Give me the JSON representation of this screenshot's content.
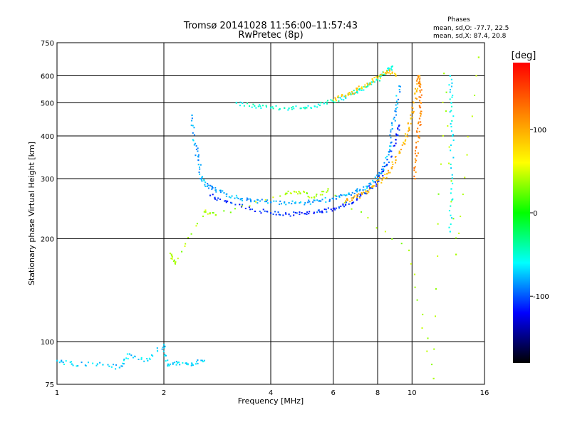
{
  "chart_data": {
    "type": "scatter",
    "title": "Tromsø 20141028 11:56:00–11:57:43",
    "subtitle": "RwPretec (8p)",
    "xlabel": "Frequency [MHz]",
    "ylabel": "Stationary phase Virtual Height [km]",
    "x_scale": "log",
    "y_scale": "log",
    "xlim": [
      1,
      16
    ],
    "ylim": [
      75,
      750
    ],
    "x_ticks": [
      1,
      2,
      4,
      6,
      8,
      10,
      16
    ],
    "y_ticks": [
      75,
      100,
      200,
      300,
      400,
      500,
      600,
      750
    ],
    "phase_box": {
      "title": "Phases",
      "line1": "mean, sd,O:  -77.7, 22.5",
      "line2": "mean, sd,X:  87.4, 20.8"
    },
    "colorbar": {
      "label": "[deg]",
      "range": [
        -180,
        180
      ],
      "ticks": [
        100,
        0,
        -100
      ],
      "colors": [
        "#ff0000",
        "#ff8000",
        "#ffff00",
        "#00ff00",
        "#00ffff",
        "#0000ff",
        "#000000"
      ]
    },
    "series": [
      {
        "values": [
          [
            2.4,
            460
          ],
          [
            2.45,
            380
          ],
          [
            2.5,
            340
          ],
          [
            2.55,
            300
          ],
          [
            2.65,
            285
          ],
          [
            2.8,
            278
          ],
          [
            3.0,
            270
          ],
          [
            3.3,
            262
          ],
          [
            3.6,
            258
          ],
          [
            4.0,
            256
          ],
          [
            4.5,
            255
          ],
          [
            5.0,
            255
          ],
          [
            5.5,
            258
          ],
          [
            6.0,
            262
          ],
          [
            6.5,
            268
          ],
          [
            7.0,
            275
          ],
          [
            7.5,
            285
          ],
          [
            8.0,
            300
          ],
          [
            8.3,
            320
          ],
          [
            8.6,
            360
          ],
          [
            8.8,
            420
          ],
          [
            9.0,
            480
          ],
          [
            9.2,
            560
          ]
        ],
        "phase": -80
      },
      {
        "values": [
          [
            2.7,
            268
          ],
          [
            3.0,
            256
          ],
          [
            3.5,
            244
          ],
          [
            4.0,
            238
          ],
          [
            4.5,
            236
          ],
          [
            5.0,
            237
          ],
          [
            5.5,
            240
          ],
          [
            6.0,
            245
          ],
          [
            6.5,
            252
          ],
          [
            7.0,
            262
          ],
          [
            7.5,
            276
          ],
          [
            8.0,
            295
          ],
          [
            8.5,
            330
          ],
          [
            9.0,
            390
          ],
          [
            9.2,
            430
          ]
        ],
        "phase": -110
      },
      {
        "values": [
          [
            3.2,
            500
          ],
          [
            3.6,
            490
          ],
          [
            4.0,
            485
          ],
          [
            4.5,
            482
          ],
          [
            5.0,
            485
          ],
          [
            5.5,
            492
          ],
          [
            6.0,
            505
          ],
          [
            6.5,
            520
          ],
          [
            7.0,
            540
          ],
          [
            7.5,
            560
          ],
          [
            8.0,
            585
          ],
          [
            8.5,
            620
          ],
          [
            8.8,
            640
          ]
        ],
        "phase": -50
      },
      {
        "values": [
          [
            6.5,
            258
          ],
          [
            7.0,
            265
          ],
          [
            7.5,
            275
          ],
          [
            8.0,
            290
          ],
          [
            8.5,
            310
          ],
          [
            9.0,
            340
          ],
          [
            9.5,
            380
          ],
          [
            9.8,
            420
          ],
          [
            10.0,
            470
          ],
          [
            10.3,
            540
          ],
          [
            10.5,
            600
          ]
        ],
        "phase": 95
      },
      {
        "values": [
          [
            6.0,
            510
          ],
          [
            6.5,
            525
          ],
          [
            7.0,
            545
          ],
          [
            7.5,
            565
          ],
          [
            8.0,
            590
          ],
          [
            8.5,
            620
          ],
          [
            9.0,
            600
          ]
        ],
        "phase": 85
      },
      {
        "values": [
          [
            10.2,
            300
          ],
          [
            10.3,
            350
          ],
          [
            10.4,
            400
          ],
          [
            10.5,
            450
          ],
          [
            10.6,
            500
          ],
          [
            10.5,
            560
          ],
          [
            10.4,
            600
          ]
        ],
        "phase": 120
      },
      {
        "values": [
          [
            1.0,
            88
          ],
          [
            1.1,
            86
          ],
          [
            1.3,
            86
          ],
          [
            1.5,
            84
          ],
          [
            1.6,
            92
          ],
          [
            1.8,
            88
          ],
          [
            2.0,
            98
          ],
          [
            2.05,
            85
          ],
          [
            2.2,
            87
          ],
          [
            2.4,
            86
          ],
          [
            2.6,
            88
          ]
        ],
        "phase": -70
      },
      {
        "values": [
          [
            12.8,
            600
          ],
          [
            12.9,
            500
          ],
          [
            13.0,
            400
          ],
          [
            12.9,
            280
          ],
          [
            12.8,
            210
          ]
        ],
        "phase": -60
      },
      {
        "values": [
          [
            2.1,
            180
          ],
          [
            2.15,
            170
          ],
          [
            2.6,
            240
          ],
          [
            2.8,
            235
          ],
          [
            4.4,
            270
          ],
          [
            4.8,
            275
          ],
          [
            5.3,
            265
          ],
          [
            5.8,
            280
          ],
          [
            9.8,
            185
          ],
          [
            11.5,
            78
          ],
          [
            12.3,
            610
          ],
          [
            13.3,
            180
          ],
          [
            15.4,
            680
          ]
        ],
        "phase": 40
      }
    ]
  }
}
